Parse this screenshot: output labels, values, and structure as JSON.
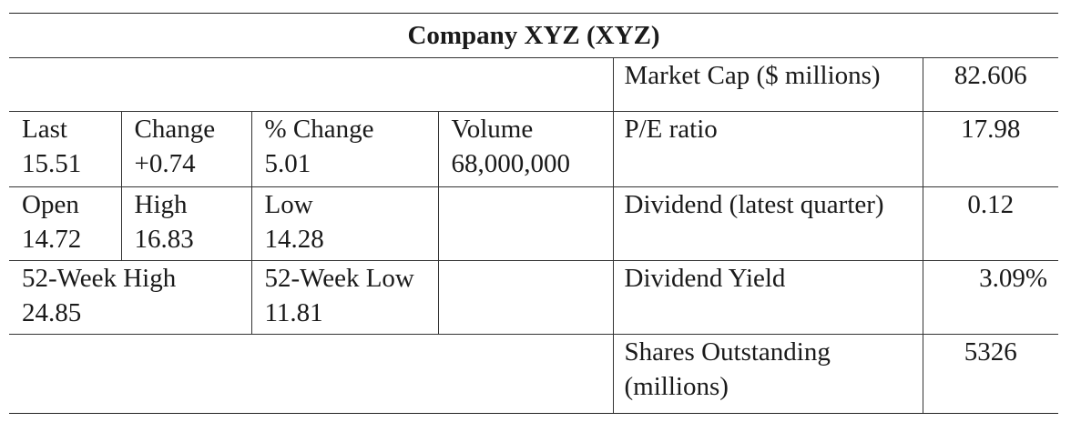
{
  "title": "Company XYZ (XYZ)",
  "quote": {
    "last": {
      "label": "Last",
      "value": "15.51"
    },
    "change": {
      "label": "Change",
      "value": "+0.74"
    },
    "pct_change": {
      "label": "% Change",
      "value": "5.01"
    },
    "volume": {
      "label": "Volume",
      "value": "68,000,000"
    },
    "open": {
      "label": "Open",
      "value": "14.72"
    },
    "high": {
      "label": "High",
      "value": "16.83"
    },
    "low": {
      "label": "Low",
      "value": "14.28"
    },
    "week52_high": {
      "label": "52-Week High",
      "value": "24.85"
    },
    "week52_low": {
      "label": "52-Week Low",
      "value": "11.81"
    }
  },
  "metrics": {
    "market_cap": {
      "label": "Market Cap ($ millions)",
      "value": "82.606"
    },
    "pe_ratio": {
      "label": "P/E ratio",
      "value": "17.98"
    },
    "dividend": {
      "label": "Dividend (latest quarter)",
      "value": "0.12"
    },
    "dividend_yield": {
      "label": "Dividend Yield",
      "value": "3.09%"
    },
    "shares_outstanding": {
      "label_line1": "Shares Outstanding",
      "label_line2": "(millions)",
      "value": "5326"
    }
  }
}
